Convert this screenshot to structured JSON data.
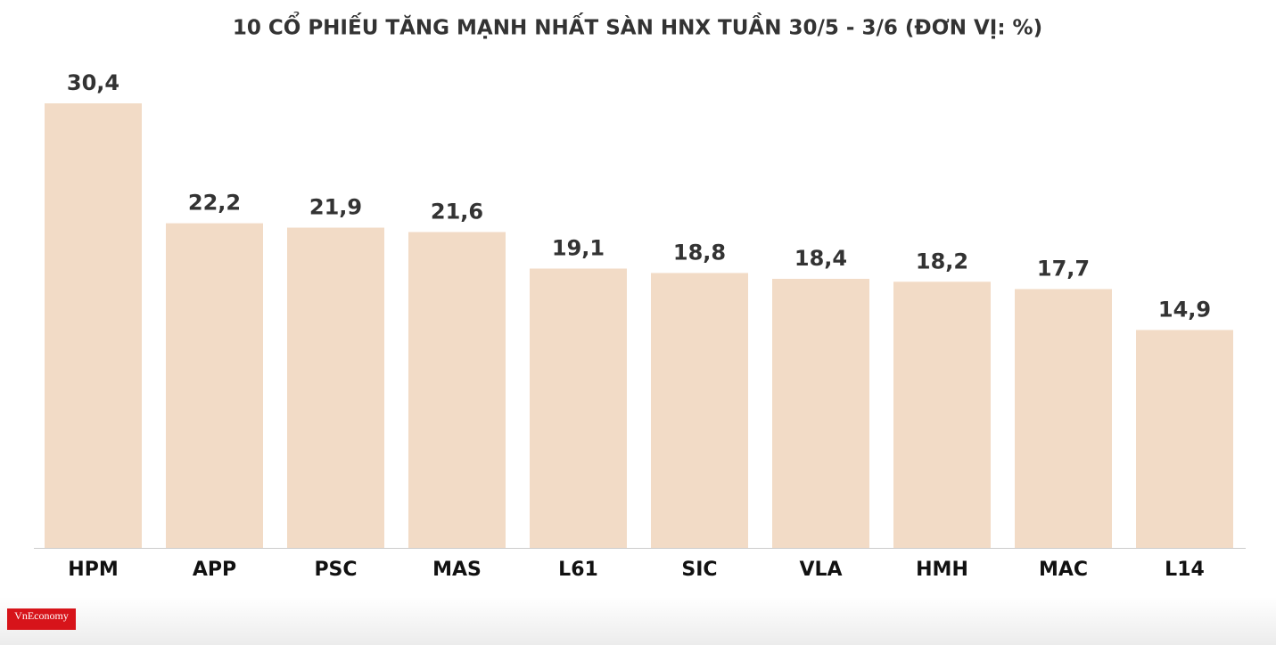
{
  "chart_data": {
    "type": "bar",
    "title": "10 CỔ PHIẾU TĂNG MẠNH NHẤT SÀN HNX TUẦN 30/5 - 3/6 (ĐƠN VỊ: %)",
    "categories": [
      "HPM",
      "APP",
      "PSC",
      "MAS",
      "L61",
      "SIC",
      "VLA",
      "HMH",
      "MAC",
      "L14"
    ],
    "values": [
      30.4,
      22.2,
      21.9,
      21.6,
      19.1,
      18.8,
      18.4,
      18.2,
      17.7,
      14.9
    ],
    "value_labels": [
      "30,4",
      "22,2",
      "21,9",
      "21,6",
      "19,1",
      "18,8",
      "18,4",
      "18,2",
      "17,7",
      "14,9"
    ],
    "color": "#f2dbc6"
  },
  "logo": "VnEconomy"
}
